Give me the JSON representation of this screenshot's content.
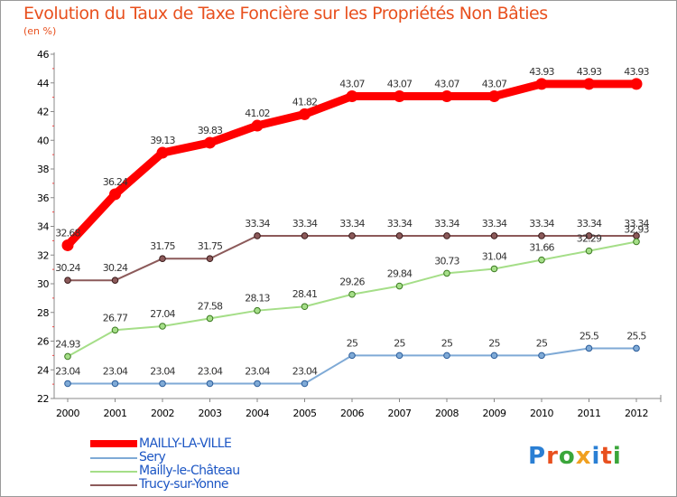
{
  "chart_data": {
    "type": "line",
    "title": "Evolution du Taux de Taxe Foncière sur les Propriétés Non Bâties",
    "ylabel": "(en %)",
    "xlabel": "",
    "x": [
      "2000",
      "2001",
      "2002",
      "2003",
      "2004",
      "2005",
      "2006",
      "2007",
      "2008",
      "2009",
      "2010",
      "2011",
      "2012"
    ],
    "ylim": [
      22,
      46
    ],
    "yticks": [
      22,
      24,
      26,
      28,
      30,
      32,
      34,
      36,
      38,
      40,
      42,
      44,
      46
    ],
    "grid": false,
    "legend_position": "bottom-left",
    "series": [
      {
        "name": "MAILLY-LA-VILLE",
        "color": "#ff0000",
        "values": [
          32.68,
          36.24,
          39.13,
          39.83,
          41.02,
          41.82,
          43.07,
          43.07,
          43.07,
          43.07,
          43.93,
          43.93,
          43.93
        ],
        "labels": [
          "32.68",
          "36.24",
          "39.13",
          "39.83",
          "41.02",
          "41.82",
          "43.07",
          "43.07",
          "43.07",
          "43.07",
          "43.93",
          "43.93",
          "43.93"
        ]
      },
      {
        "name": "Sery",
        "color": "#7faad6",
        "values": [
          23.04,
          23.04,
          23.04,
          23.04,
          23.04,
          23.04,
          25,
          25,
          25,
          25,
          25,
          25.5,
          25.5
        ],
        "labels": [
          "23.04",
          "23.04",
          "23.04",
          "23.04",
          "23.04",
          "23.04",
          "25",
          "25",
          "25",
          "25",
          "25",
          "25.5",
          "25.5"
        ]
      },
      {
        "name": "Mailly-le-Château",
        "color": "#a5de88",
        "values": [
          24.93,
          26.77,
          27.04,
          27.58,
          28.13,
          28.41,
          29.26,
          29.84,
          30.73,
          31.04,
          31.66,
          32.29,
          32.93
        ],
        "labels": [
          "24.93",
          "26.77",
          "27.04",
          "27.58",
          "28.13",
          "28.41",
          "29.26",
          "29.84",
          "30.73",
          "31.04",
          "31.66",
          "32.29",
          "32.93"
        ]
      },
      {
        "name": "Trucy-sur-Yonne",
        "color": "#8c5a5a",
        "values": [
          30.24,
          30.24,
          31.75,
          31.75,
          33.34,
          33.34,
          33.34,
          33.34,
          33.34,
          33.34,
          33.34,
          33.34,
          33.34
        ],
        "labels": [
          "30.24",
          "30.24",
          "31.75",
          "31.75",
          "33.34",
          "33.34",
          "33.34",
          "33.34",
          "33.34",
          "33.34",
          "33.34",
          "33.34",
          "33.34"
        ]
      }
    ]
  },
  "logo": {
    "text": "Proxiti",
    "colors": [
      "#2a7fd4",
      "#e8501e",
      "#3aa63a",
      "#f0a020",
      "#2a7fd4",
      "#e8501e",
      "#3aa63a"
    ]
  }
}
